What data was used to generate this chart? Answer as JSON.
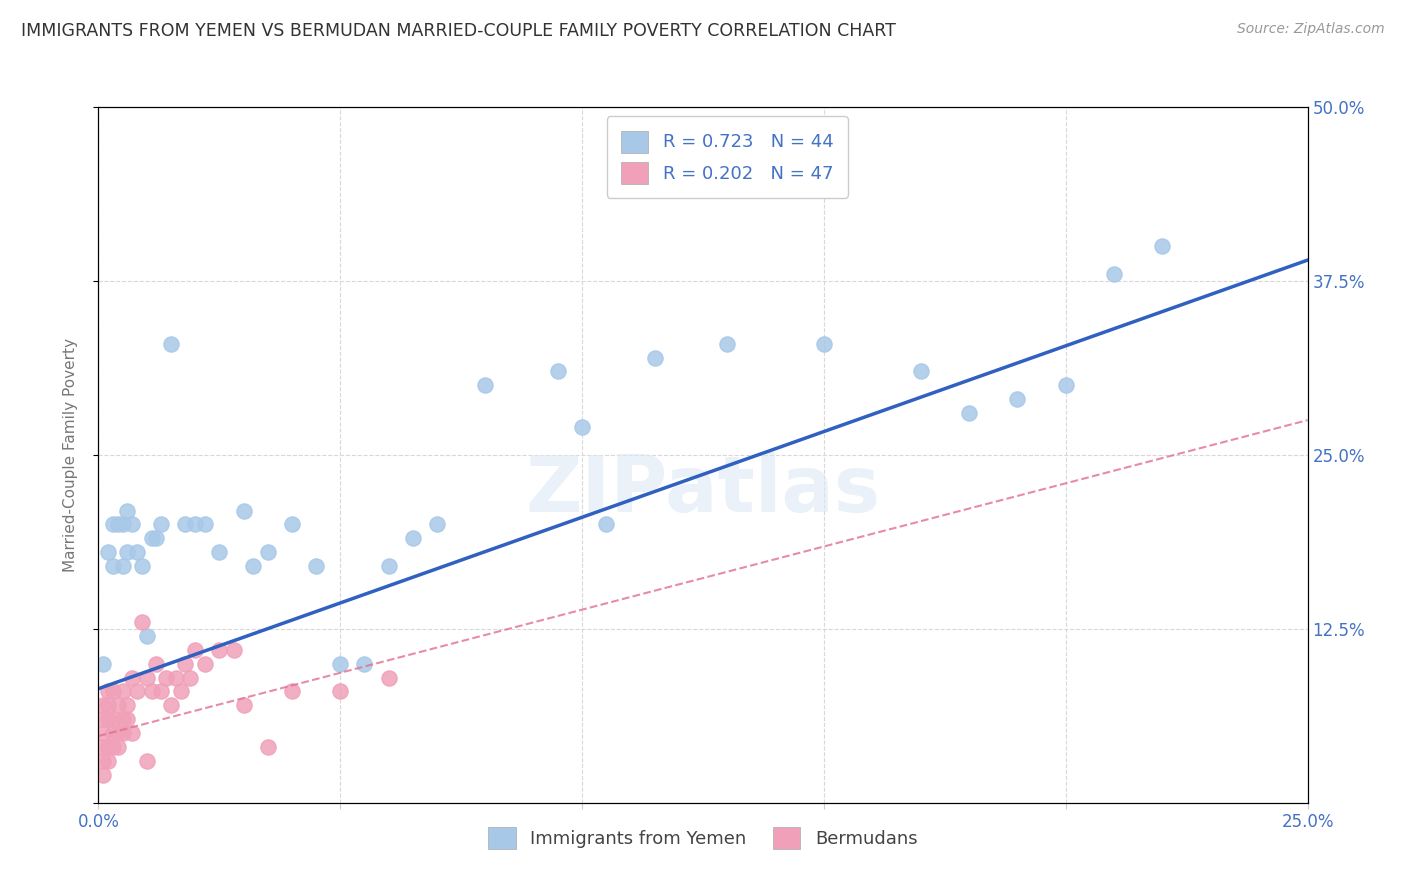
{
  "title": "IMMIGRANTS FROM YEMEN VS BERMUDAN MARRIED-COUPLE FAMILY POVERTY CORRELATION CHART",
  "source": "Source: ZipAtlas.com",
  "ylabel": "Married-Couple Family Poverty",
  "xlim": [
    0,
    0.25
  ],
  "ylim": [
    0,
    0.5
  ],
  "xticks": [
    0.0,
    0.05,
    0.1,
    0.15,
    0.2,
    0.25
  ],
  "yticks": [
    0.0,
    0.125,
    0.25,
    0.375,
    0.5
  ],
  "xtick_labels": [
    "0.0%",
    "",
    "",
    "",
    "",
    "25.0%"
  ],
  "ytick_labels": [
    "",
    "12.5%",
    "25.0%",
    "37.5%",
    "50.0%"
  ],
  "legend_labels": [
    "Immigrants from Yemen",
    "Bermudans"
  ],
  "series1_color": "#a8c8e8",
  "series2_color": "#f0a0b8",
  "trend1_color": "#3060c0",
  "trend2_color": "#e07090",
  "R1": 0.723,
  "N1": 44,
  "R2": 0.202,
  "N2": 47,
  "watermark": "ZIPatlas",
  "background_color": "#ffffff",
  "grid_color": "#d8d8d8",
  "title_color": "#333333",
  "axis_label_color": "#4472c4",
  "trend1_x0": 0.0,
  "trend1_y0": 0.082,
  "trend1_x1": 0.25,
  "trend1_y1": 0.39,
  "trend2_x0": 0.0,
  "trend2_y0": 0.048,
  "trend2_x1": 0.25,
  "trend2_y1": 0.275,
  "series1_x": [
    0.001,
    0.002,
    0.003,
    0.003,
    0.004,
    0.005,
    0.005,
    0.006,
    0.006,
    0.007,
    0.008,
    0.009,
    0.01,
    0.011,
    0.012,
    0.013,
    0.015,
    0.018,
    0.02,
    0.022,
    0.025,
    0.03,
    0.032,
    0.035,
    0.04,
    0.045,
    0.05,
    0.055,
    0.06,
    0.065,
    0.07,
    0.08,
    0.095,
    0.1,
    0.105,
    0.115,
    0.13,
    0.15,
    0.17,
    0.18,
    0.19,
    0.2,
    0.21,
    0.22
  ],
  "series1_y": [
    0.1,
    0.18,
    0.17,
    0.2,
    0.2,
    0.17,
    0.2,
    0.18,
    0.21,
    0.2,
    0.18,
    0.17,
    0.12,
    0.19,
    0.19,
    0.2,
    0.33,
    0.2,
    0.2,
    0.2,
    0.18,
    0.21,
    0.17,
    0.18,
    0.2,
    0.17,
    0.1,
    0.1,
    0.17,
    0.19,
    0.2,
    0.3,
    0.31,
    0.27,
    0.2,
    0.32,
    0.33,
    0.33,
    0.31,
    0.28,
    0.29,
    0.3,
    0.38,
    0.4
  ],
  "series2_x": [
    0.001,
    0.001,
    0.001,
    0.001,
    0.001,
    0.001,
    0.002,
    0.002,
    0.002,
    0.002,
    0.002,
    0.003,
    0.003,
    0.003,
    0.003,
    0.004,
    0.004,
    0.004,
    0.005,
    0.005,
    0.005,
    0.006,
    0.006,
    0.007,
    0.007,
    0.008,
    0.009,
    0.01,
    0.01,
    0.011,
    0.012,
    0.013,
    0.014,
    0.015,
    0.016,
    0.017,
    0.018,
    0.019,
    0.02,
    0.022,
    0.025,
    0.028,
    0.03,
    0.035,
    0.04,
    0.05,
    0.06
  ],
  "series2_y": [
    0.02,
    0.03,
    0.04,
    0.05,
    0.06,
    0.07,
    0.03,
    0.04,
    0.06,
    0.07,
    0.08,
    0.04,
    0.05,
    0.06,
    0.08,
    0.04,
    0.05,
    0.07,
    0.05,
    0.06,
    0.08,
    0.06,
    0.07,
    0.05,
    0.09,
    0.08,
    0.13,
    0.09,
    0.03,
    0.08,
    0.1,
    0.08,
    0.09,
    0.07,
    0.09,
    0.08,
    0.1,
    0.09,
    0.11,
    0.1,
    0.11,
    0.11,
    0.07,
    0.04,
    0.08,
    0.08,
    0.09
  ]
}
